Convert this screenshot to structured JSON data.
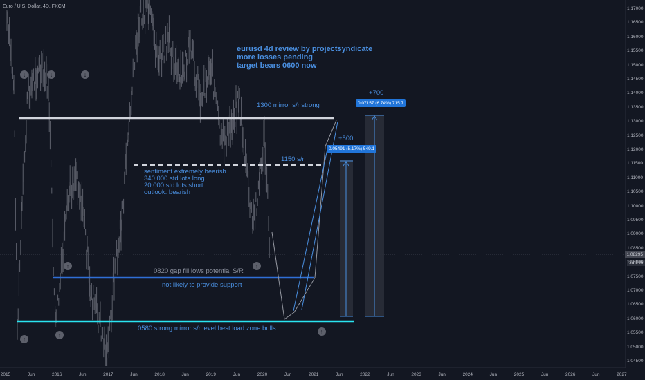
{
  "symbol": "Euro / U.S. Dollar, 4D, FXCM",
  "annotations": {
    "headline": [
      "eurusd 4d review by projectsyndicate",
      "more losses pending",
      "target bears 0600 now"
    ],
    "mirror_1300": "1300 mirror s/r strong",
    "sr_1150": "1150 s/r",
    "sentiment": [
      "sentiment extremely bearish",
      "340 000 std lots long",
      "20 000 std lots short",
      "outlook: bearish"
    ],
    "gap_0820": "0820 gap fill lows potential S/R",
    "no_support": "not likely to provide support",
    "mirror_0580": "0580 strong mirror s/r level best load zone bulls",
    "plus500": "+500",
    "plus700": "+700",
    "box500": "0.05491 (5.17%) 549.1",
    "box700": "0.07157 (6.74%) 715.7"
  },
  "price_axis": [
    "1.17000",
    "1.16500",
    "1.16000",
    "1.15500",
    "1.15000",
    "1.14500",
    "1.14000",
    "1.13500",
    "1.13000",
    "1.12500",
    "1.12000",
    "1.11500",
    "1.11000",
    "1.10500",
    "1.10000",
    "1.09500",
    "1.09000",
    "1.08500",
    "1.08000",
    "1.07500",
    "1.07000",
    "1.06500",
    "1.06000",
    "1.05500",
    "1.05000",
    "1.04500"
  ],
  "current_price": "1.08295",
  "countdown": "3d 14h",
  "time_axis": [
    "2015",
    "Jun",
    "2016",
    "Jun",
    "2017",
    "Jun",
    "2018",
    "Jun",
    "2019",
    "Jun",
    "2020",
    "Jun",
    "2021",
    "Jun",
    "2022",
    "Jun",
    "2023",
    "Jun",
    "2024",
    "Jun",
    "2025",
    "Jun",
    "2026",
    "Jun",
    "2027"
  ],
  "colors": {
    "background": "#131722",
    "candles": "#5d606b",
    "white_line": "#d1d4dc",
    "blue_line": "#2f6fd6",
    "cyan_line": "#2ae4f0",
    "annotation_blue": "#4a8fe0"
  },
  "icons": [
    "arrow-down-circle-icon",
    "arrow-up-circle-icon"
  ]
}
